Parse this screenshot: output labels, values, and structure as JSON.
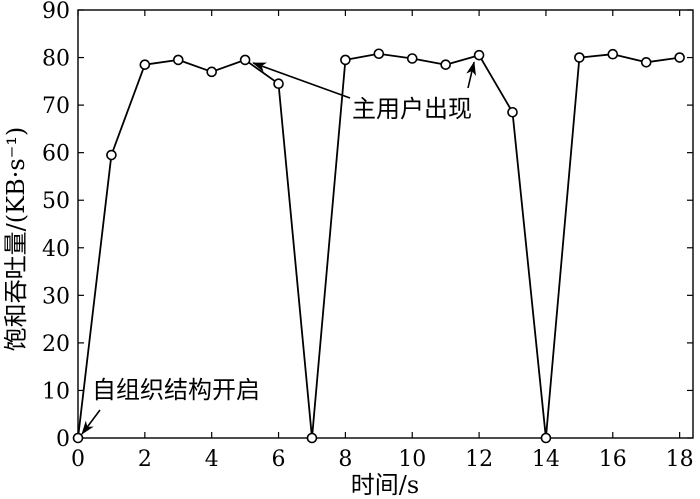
{
  "chart_data": {
    "type": "line",
    "xlabel": "时间/s",
    "ylabel": "饱和吞吐量/(KB·s⁻¹)",
    "xlim": [
      0,
      18.4
    ],
    "ylim": [
      0,
      90
    ],
    "xticks": [
      0,
      2,
      4,
      6,
      8,
      10,
      12,
      14,
      16,
      18
    ],
    "yticks": [
      0,
      10,
      20,
      30,
      40,
      50,
      60,
      70,
      80,
      90
    ],
    "grid": false,
    "marker": "circle",
    "series": [
      {
        "x": [
          0,
          1,
          2,
          3,
          4,
          5,
          6,
          7,
          8,
          9,
          10,
          11,
          12,
          13,
          14,
          15,
          16,
          17,
          18
        ],
        "y": [
          0,
          59.5,
          78.5,
          79.5,
          77,
          79.5,
          74.5,
          0,
          79.5,
          80.8,
          79.8,
          78.5,
          80.5,
          68.5,
          0,
          80,
          80.7,
          79,
          80
        ]
      }
    ],
    "annotations": [
      {
        "text": "主用户出现",
        "targets": [
          [
            5,
            79.5
          ],
          [
            12,
            80.5
          ]
        ],
        "anchor": [
          8.5,
          69
        ]
      },
      {
        "text": "自组织结构开启",
        "targets": [
          [
            0,
            0
          ]
        ],
        "anchor": [
          0.4,
          7.5
        ]
      }
    ]
  }
}
